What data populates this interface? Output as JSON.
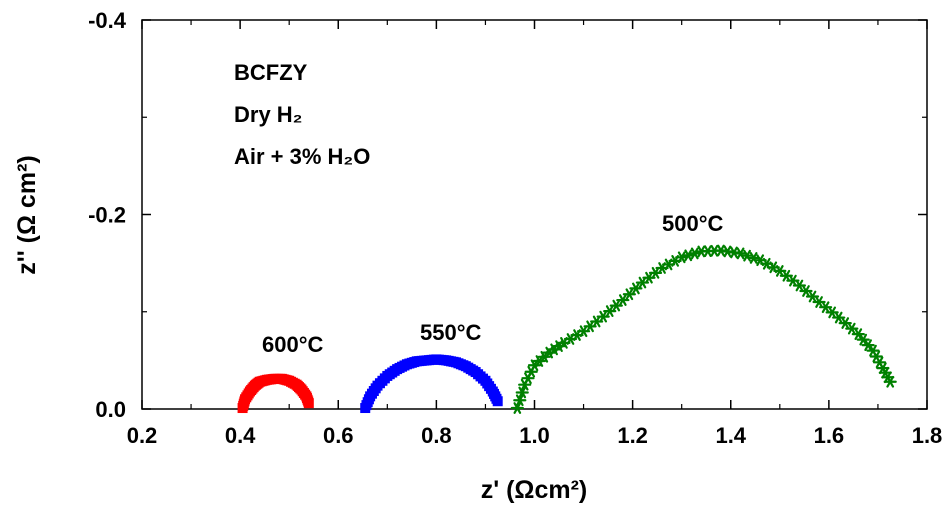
{
  "chart_data": {
    "type": "scatter",
    "title": "",
    "xlabel": "z' (Ωcm²)",
    "ylabel": "z'' (Ω cm²)",
    "xlim": [
      0.2,
      1.8
    ],
    "ylim": [
      0.0,
      -0.4
    ],
    "x_ticks": [
      "0.2",
      "0.4",
      "0.6",
      "0.8",
      "1.0",
      "1.2",
      "1.4",
      "1.6",
      "1.8"
    ],
    "y_ticks": [
      "0.0",
      "-0.2",
      "-0.4"
    ],
    "annotations": [
      "BCFZY",
      "Dry H₂",
      "Air + 3% H₂O"
    ],
    "series": [
      {
        "name": "600°C",
        "color": "#ff0000",
        "marker": "square",
        "x": [
          0.405,
          0.41,
          0.42,
          0.43,
          0.44,
          0.455,
          0.47,
          0.485,
          0.5,
          0.515,
          0.525,
          0.535,
          0.54
        ],
        "y": [
          -0.001,
          -0.01,
          -0.018,
          -0.024,
          -0.028,
          -0.03,
          -0.031,
          -0.031,
          -0.029,
          -0.025,
          -0.02,
          -0.013,
          -0.006
        ]
      },
      {
        "name": "550°C",
        "color": "#0000ff",
        "marker": "square",
        "x": [
          0.655,
          0.665,
          0.68,
          0.7,
          0.72,
          0.74,
          0.76,
          0.78,
          0.8,
          0.82,
          0.84,
          0.86,
          0.88,
          0.9,
          0.915,
          0.925
        ],
        "y": [
          -0.001,
          -0.013,
          -0.024,
          -0.034,
          -0.041,
          -0.046,
          -0.049,
          -0.05,
          -0.051,
          -0.05,
          -0.048,
          -0.044,
          -0.038,
          -0.029,
          -0.018,
          -0.008
        ]
      },
      {
        "name": "500°C",
        "color": "#008000",
        "marker": "star",
        "x": [
          0.965,
          0.98,
          1.0,
          1.03,
          1.06,
          1.1,
          1.14,
          1.18,
          1.22,
          1.26,
          1.3,
          1.34,
          1.38,
          1.42,
          1.46,
          1.5,
          1.54,
          1.58,
          1.62,
          1.66,
          1.69,
          1.71,
          1.725
        ],
        "y": [
          -0.001,
          -0.025,
          -0.045,
          -0.058,
          -0.068,
          -0.08,
          -0.095,
          -0.112,
          -0.13,
          -0.145,
          -0.156,
          -0.162,
          -0.163,
          -0.16,
          -0.153,
          -0.142,
          -0.127,
          -0.11,
          -0.094,
          -0.077,
          -0.06,
          -0.042,
          -0.028
        ]
      }
    ]
  }
}
